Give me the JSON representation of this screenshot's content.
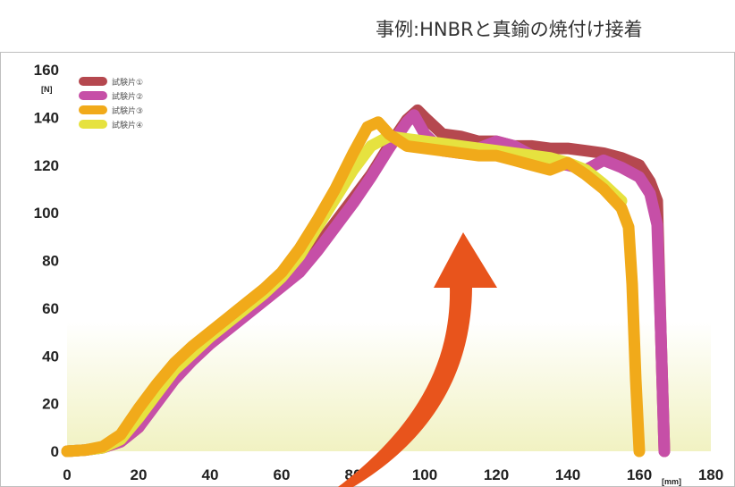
{
  "chart_data": {
    "type": "line",
    "title": "事例:HNBRと真鍮の焼付け接着",
    "y_unit": "[N]",
    "x_unit": "[mm]",
    "xlim": [
      0,
      180
    ],
    "ylim": [
      0,
      160
    ],
    "x_ticks": [
      "0",
      "20",
      "40",
      "60",
      "80",
      "100",
      "120",
      "140",
      "160",
      "180"
    ],
    "y_ticks": [
      "0",
      "20",
      "40",
      "60",
      "80",
      "100",
      "120",
      "140",
      "160"
    ],
    "grid": false,
    "legend_position": "top-left",
    "series": [
      {
        "name": "試験片①",
        "color": "#b5484f",
        "x": [
          0,
          5,
          10,
          15,
          20,
          25,
          30,
          35,
          40,
          45,
          50,
          55,
          60,
          65,
          70,
          75,
          80,
          85,
          90,
          95,
          98,
          100,
          105,
          110,
          115,
          120,
          125,
          130,
          135,
          140,
          145,
          150,
          155,
          160,
          163,
          165,
          166,
          167
        ],
        "y": [
          0,
          0.5,
          1.5,
          4,
          10,
          22,
          32,
          40,
          47,
          53,
          59,
          65,
          70,
          76,
          86,
          96,
          106,
          116,
          128,
          139,
          143,
          140,
          133,
          132,
          130,
          130,
          128,
          128,
          127,
          127,
          126,
          125,
          123,
          120,
          113,
          105,
          50,
          0
        ]
      },
      {
        "name": "試験片②",
        "color": "#c64fa7",
        "x": [
          0,
          5,
          10,
          15,
          20,
          25,
          30,
          35,
          40,
          45,
          50,
          55,
          60,
          65,
          70,
          75,
          80,
          85,
          90,
          95,
          97,
          100,
          105,
          110,
          115,
          120,
          125,
          130,
          135,
          140,
          145,
          150,
          155,
          160,
          163,
          165,
          166,
          167
        ],
        "y": [
          0,
          0.5,
          1.5,
          4,
          10,
          20,
          30,
          38,
          45,
          51,
          57,
          63,
          69,
          75,
          84,
          94,
          104,
          115,
          127,
          138,
          141,
          133,
          126,
          125,
          127,
          130,
          128,
          124,
          121,
          120,
          118,
          122,
          119,
          115,
          108,
          95,
          50,
          0
        ]
      },
      {
        "name": "試験片③",
        "color": "#f1aa1a",
        "x": [
          0,
          5,
          10,
          15,
          20,
          25,
          30,
          35,
          40,
          45,
          50,
          55,
          60,
          65,
          70,
          75,
          80,
          84,
          87,
          90,
          95,
          100,
          105,
          110,
          115,
          120,
          125,
          130,
          135,
          140,
          145,
          150,
          155,
          157,
          158,
          159,
          160
        ],
        "y": [
          0,
          0.5,
          2,
          7,
          18,
          28,
          37,
          44,
          50,
          56,
          62,
          68,
          75,
          85,
          97,
          110,
          125,
          136,
          138,
          133,
          128,
          127,
          126,
          125,
          124,
          124,
          122,
          120,
          118,
          121,
          116,
          110,
          102,
          94,
          70,
          30,
          0
        ]
      },
      {
        "name": "試験片④",
        "color": "#e6e23f",
        "x": [
          0,
          5,
          10,
          15,
          20,
          25,
          30,
          35,
          40,
          45,
          50,
          55,
          60,
          65,
          70,
          75,
          80,
          85,
          90,
          95,
          100,
          105,
          110,
          115,
          120,
          125,
          130,
          135,
          140,
          145,
          150,
          155
        ],
        "y": [
          0,
          0.5,
          1.5,
          5,
          14,
          24,
          34,
          41,
          48,
          54,
          60,
          66,
          73,
          82,
          94,
          106,
          118,
          128,
          132,
          131,
          130,
          129,
          128,
          127,
          126,
          125,
          124,
          123,
          121,
          118,
          112,
          105
        ]
      }
    ]
  }
}
